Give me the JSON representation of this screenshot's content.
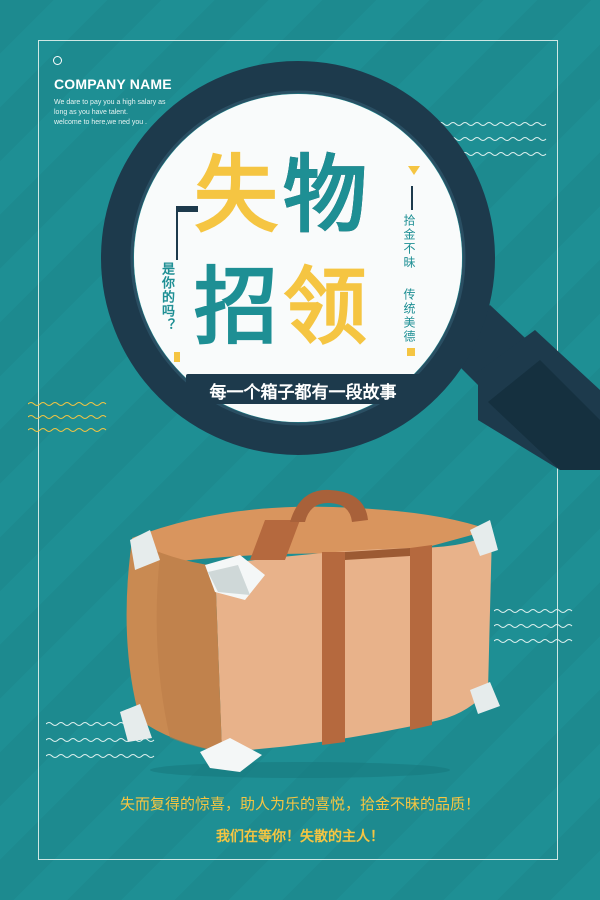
{
  "header": {
    "company_name": "COMPANY NAME",
    "tagline_lines": [
      "We dare to pay you a high salary as",
      "long as you have talent.",
      "welcome to here,we ned you ."
    ]
  },
  "title": {
    "char1": "失",
    "char2": "物",
    "char3": "招",
    "char4": "领",
    "subtitle": "每一个箱子都有一段故事",
    "vertical_left": "是你的吗？",
    "vertical_right_a": "拾金不昧",
    "vertical_right_b": "传统美德"
  },
  "footer": {
    "line1": "失而复得的惊喜，助人为乐的喜悦，拾金不昧的品质！",
    "line2": "我们在等你！失散的主人！"
  },
  "colors": {
    "background": "#1e8f94",
    "accent_yellow": "#f5c542",
    "dark_navy": "#1d3a4c",
    "white": "#ffffff"
  }
}
